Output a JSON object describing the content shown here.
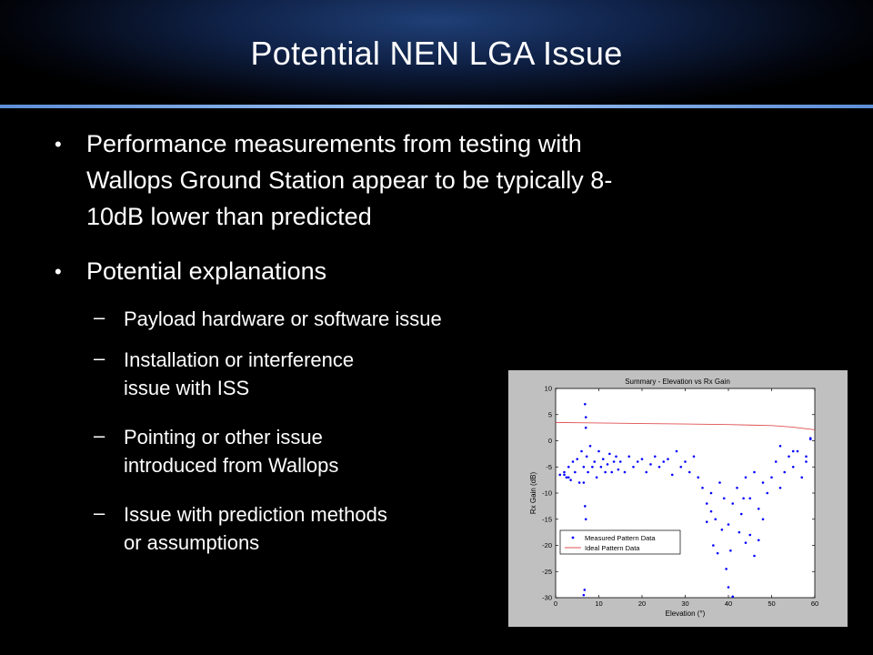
{
  "slide": {
    "title": "Potential NEN LGA Issue",
    "bullets": [
      {
        "lines": [
          "Performance measurements from testing with",
          "Wallops Ground Station appear to be typically 8-",
          "10dB lower than predicted"
        ]
      },
      {
        "lines": [
          "Potential explanations"
        ]
      }
    ],
    "sub_bullets": [
      {
        "lines": [
          "Payload hardware or software issue"
        ]
      },
      {
        "lines": [
          "Installation or interference",
          "issue with ISS"
        ]
      },
      {
        "lines": [
          "Pointing or other issue",
          "introduced from Wallops"
        ]
      },
      {
        "lines": [
          "Issue with prediction methods",
          "or assumptions"
        ]
      }
    ]
  },
  "chart_data": {
    "type": "scatter",
    "title": "Summary - Elevation vs Rx Gain",
    "xlabel": "Elevation (°)",
    "ylabel": "Rx Gain (dB)",
    "xlim": [
      0,
      60
    ],
    "ylim": [
      -30,
      10
    ],
    "xticks": [
      "0",
      "10",
      "20",
      "30",
      "40",
      "50",
      "60"
    ],
    "yticks": [
      "10",
      "5",
      "0",
      "-5",
      "-10",
      "-15",
      "-20",
      "-25",
      "-30"
    ],
    "legend_position": "bottom-left",
    "series": [
      {
        "name": "Measured Pattern Data",
        "color": "#0000ff",
        "mode": "markers",
        "x": [
          1,
          2,
          2.5,
          3,
          3.5,
          4,
          4.5,
          5,
          5.5,
          6,
          6.5,
          6.8,
          7,
          7,
          7.2,
          7.5,
          8,
          8.5,
          9,
          9.5,
          10,
          10.5,
          11,
          11.5,
          12,
          12.5,
          13,
          13.5,
          14,
          14.5,
          15,
          16,
          17,
          18,
          19,
          20,
          21,
          22,
          23,
          24,
          25,
          26,
          27,
          28,
          29,
          30,
          31,
          32,
          33,
          34,
          35,
          36,
          37,
          38,
          39,
          40,
          41,
          42,
          43,
          44,
          45,
          46,
          47,
          48,
          49,
          50,
          51,
          52,
          53,
          54,
          55,
          56,
          57,
          58,
          59,
          6.5,
          6.7,
          6.8,
          7,
          37.5,
          39.5,
          40,
          44,
          38.5,
          46,
          36.5,
          41,
          45,
          36,
          42.5,
          47,
          35,
          43.5,
          48,
          40.5,
          6.5,
          3,
          2,
          58,
          59,
          52,
          55
        ],
        "y": [
          -6.5,
          -6,
          -7,
          -5,
          -7.5,
          -4,
          -6,
          -3.5,
          -8,
          -2,
          -5,
          7,
          4.5,
          2.5,
          -3,
          -6,
          -1,
          -5,
          -4,
          -7,
          -2,
          -5,
          -3.5,
          -6,
          -4.5,
          -2.5,
          -6,
          -4,
          -3,
          -5.5,
          -4,
          -6,
          -3,
          -5,
          -4,
          -3.5,
          -6,
          -4.5,
          -3,
          -5,
          -4,
          -3.5,
          -6.5,
          -2,
          -5,
          -4,
          -6,
          -3,
          -7,
          -9,
          -12,
          -10,
          -15,
          -8,
          -11,
          -16,
          -12,
          -9,
          -14,
          -7,
          -11,
          -6,
          -13,
          -8,
          -10,
          -7,
          -4,
          -9,
          -6,
          -3,
          -5,
          -2,
          -7,
          -4,
          0.5,
          -29.5,
          -28.5,
          -12.5,
          -15,
          -21.5,
          -24.5,
          -28,
          -19.5,
          -17,
          -22,
          -20,
          -29.8,
          -18,
          -13.5,
          -17.5,
          -19,
          -15.5,
          -11,
          -15,
          -21,
          -8,
          -7,
          -6.5,
          -3,
          0.3,
          -1,
          -2
        ]
      },
      {
        "name": "Ideal Pattern Data",
        "color": "#e05050",
        "mode": "line",
        "x": [
          0,
          10,
          20,
          30,
          40,
          45,
          50,
          52,
          55,
          57,
          58,
          59,
          60
        ],
        "y": [
          3.5,
          3.4,
          3.3,
          3.2,
          3.1,
          3.0,
          2.9,
          2.8,
          2.6,
          2.4,
          2.3,
          2.2,
          2.1
        ]
      }
    ]
  }
}
